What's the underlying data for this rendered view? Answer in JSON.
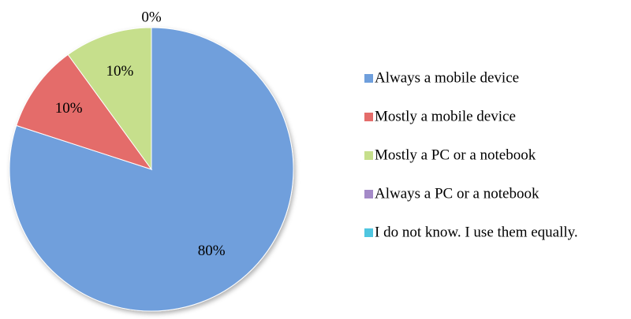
{
  "chart_data": {
    "type": "pie",
    "categories": [
      "Always a mobile device",
      "Mostly a mobile device",
      "Mostly a PC or a notebook",
      "Always a PC or a notebook",
      "I do not know. I use them equally."
    ],
    "values": [
      80,
      10,
      10,
      0,
      0
    ],
    "value_labels": [
      "80%",
      "10%",
      "10%",
      "0%",
      null
    ],
    "colors": [
      "#6f9fdc",
      "#e46c6a",
      "#c6df8c",
      "#a48ac8",
      "#4fc6e0"
    ],
    "legend": "right"
  }
}
